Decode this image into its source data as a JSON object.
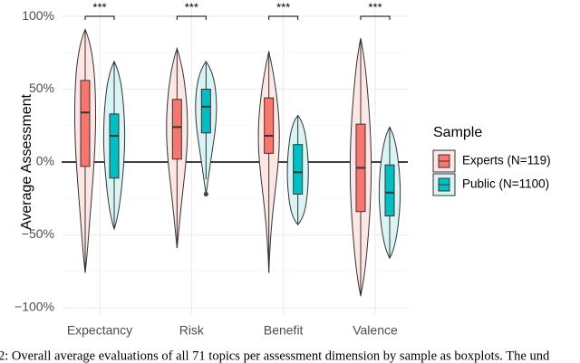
{
  "chart_data": {
    "type": "violin",
    "y_label": "Average Assessment",
    "categories": [
      "Expectancy",
      "Risk",
      "Benefit",
      "Valence"
    ],
    "ylim": [
      -105,
      105
    ],
    "yticks": [
      {
        "value": -100,
        "label": "−100%"
      },
      {
        "value": -50,
        "label": "−50%"
      },
      {
        "value": 0,
        "label": "0%"
      },
      {
        "value": 50,
        "label": "50%"
      },
      {
        "value": 100,
        "label": "100%"
      }
    ],
    "grid": true,
    "legend_title": "Sample",
    "legend_position": "right",
    "significance": [
      "***",
      "***",
      "***",
      "***"
    ],
    "series": [
      {
        "name": "Experts (N=119)",
        "color": "#f8766d",
        "violin_color": "#fde6e4",
        "whisker_low": [
          -76,
          -59,
          -76,
          -92
        ],
        "q1": [
          -3,
          2,
          6,
          -34
        ],
        "median": [
          34,
          24,
          18,
          -4
        ],
        "q3": [
          56,
          43,
          44,
          26
        ],
        "whisker_high": [
          91,
          78,
          76,
          85
        ],
        "outliers": [
          [],
          [],
          [],
          []
        ]
      },
      {
        "name": "Public (N=1100)",
        "color": "#00bfc4",
        "violin_color": "#d8f4f4",
        "whisker_low": [
          -46,
          -12,
          -43,
          -66
        ],
        "q1": [
          -11,
          20,
          -22,
          -37
        ],
        "median": [
          18,
          38,
          -7,
          -21
        ],
        "q3": [
          33,
          50,
          12,
          -2
        ],
        "whisker_high": [
          69,
          69,
          32,
          24
        ],
        "outliers": [
          [],
          [
            -22
          ],
          [],
          []
        ]
      }
    ],
    "caption": "2: Overall average evaluations of all 71 topics per assessment dimension by sample as boxplots. The und"
  }
}
